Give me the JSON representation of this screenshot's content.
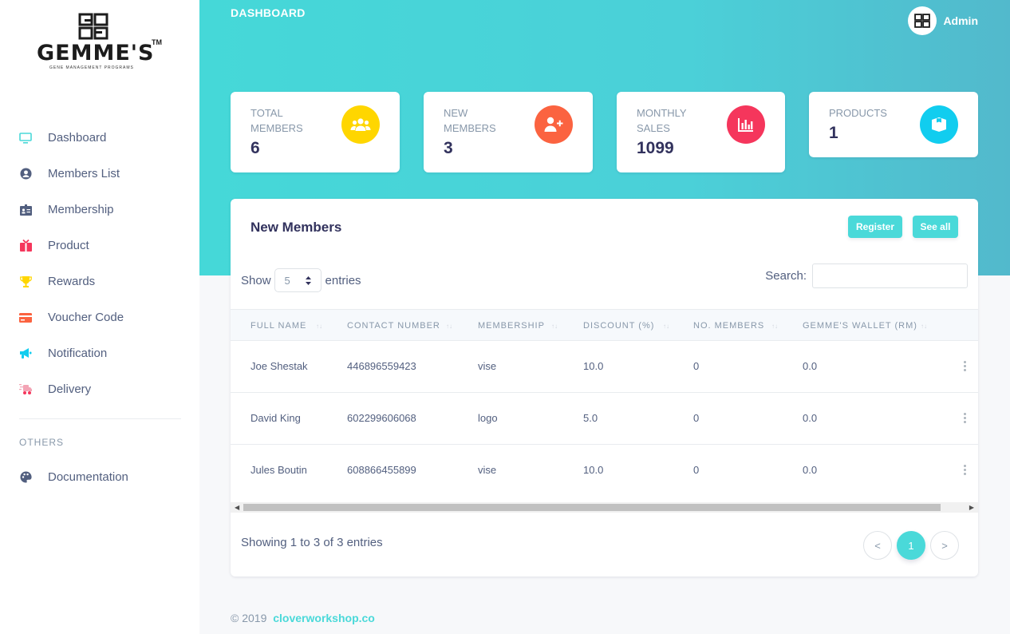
{
  "brand": {
    "name": "GEMME'S",
    "tm": "TM",
    "tagline": "GENE MANAGEMENT PROGRAMS"
  },
  "sidebar": {
    "items": [
      {
        "label": "Dashboard",
        "icon": "monitor-icon",
        "color": "#4ad9d9"
      },
      {
        "label": "Members List",
        "icon": "user-circle-icon",
        "color": "#525f7f"
      },
      {
        "label": "Membership",
        "icon": "id-card-icon",
        "color": "#525f7f"
      },
      {
        "label": "Product",
        "icon": "gift-box-icon",
        "color": "#f5365c"
      },
      {
        "label": "Rewards",
        "icon": "trophy-icon",
        "color": "#ffd600"
      },
      {
        "label": "Voucher Code",
        "icon": "credit-card-icon",
        "color": "#fb6340"
      },
      {
        "label": "Notification",
        "icon": "megaphone-icon",
        "color": "#11cdef"
      },
      {
        "label": "Delivery",
        "icon": "delivery-icon",
        "color": "#f3a4b5"
      }
    ],
    "others_heading": "OTHERS",
    "documentation": {
      "label": "Documentation",
      "icon": "palette-icon"
    }
  },
  "header": {
    "title": "DASHBOARD",
    "user": "Admin"
  },
  "stats": [
    {
      "label": "TOTAL MEMBERS",
      "value": "6",
      "icon": "users-icon",
      "color": "#ffd600"
    },
    {
      "label": "NEW MEMBERS",
      "value": "3",
      "icon": "user-plus-icon",
      "color": "#fb6340"
    },
    {
      "label": "MONTHLY SALES",
      "value": "1099",
      "icon": "bar-chart-icon",
      "color": "#f5365c"
    },
    {
      "label": "PRODUCTS",
      "value": "1",
      "icon": "box-icon",
      "color": "#11cdef"
    }
  ],
  "table": {
    "title": "New Members",
    "register_label": "Register",
    "see_all_label": "See all",
    "show_label": "Show",
    "entries_value": "5",
    "entries_label": "entries",
    "search_label": "Search:",
    "search_value": "",
    "columns": [
      "FULL NAME",
      "CONTACT NUMBER",
      "MEMBERSHIP",
      "DISCOUNT (%)",
      "NO. MEMBERS",
      "GEMME'S WALLET (RM)"
    ],
    "rows": [
      [
        "Joe Shestak",
        "446896559423",
        "vise",
        "10.0",
        "0",
        "0.0"
      ],
      [
        "David King",
        "602299606068",
        "logo",
        "5.0",
        "0",
        "0.0"
      ],
      [
        "Jules Boutin",
        "608866455899",
        "vise",
        "10.0",
        "0",
        "0.0"
      ]
    ],
    "info": "Showing 1 to 3 of 3 entries",
    "pagination": {
      "prev": "<",
      "current": "1",
      "next": ">"
    }
  },
  "footer": {
    "copyright": "© 2019",
    "link": "cloverworkshop.co"
  },
  "colors": {
    "accent": "#4ad9d9",
    "header_gradient_start": "#45d8d8",
    "header_gradient_end": "#52b9cc"
  }
}
